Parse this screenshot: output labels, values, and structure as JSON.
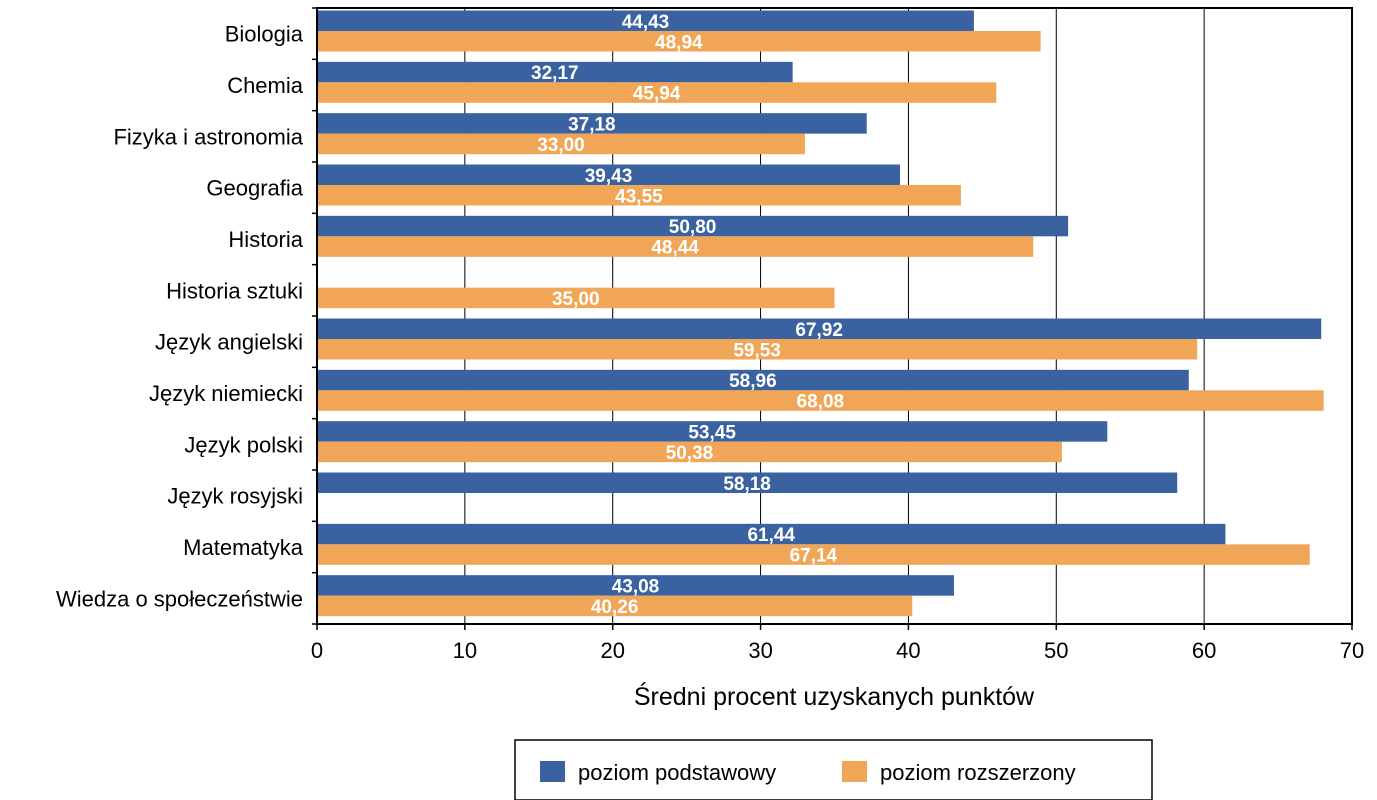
{
  "chart_data": {
    "type": "bar",
    "orientation": "horizontal",
    "categories": [
      "Biologia",
      "Chemia",
      "Fizyka i astronomia",
      "Geografia",
      "Historia",
      "Historia sztuki",
      "Język angielski",
      "Język niemiecki",
      "Język polski",
      "Język rosyjski",
      "Matematyka",
      "Wiedza o społeczeństwie"
    ],
    "series": [
      {
        "name": "poziom podstawowy",
        "color": "#3b62a0",
        "values": [
          44.43,
          32.17,
          37.18,
          39.43,
          50.8,
          null,
          67.92,
          58.96,
          53.45,
          58.18,
          61.44,
          43.08
        ],
        "labels": [
          "44,43",
          "32,17",
          "37,18",
          "39,43",
          "50,80",
          "",
          "67,92",
          "58,96",
          "53,45",
          "58,18",
          "61,44",
          "43,08"
        ]
      },
      {
        "name": "poziom rozszerzony",
        "color": "#f0a656",
        "values": [
          48.94,
          45.94,
          33.0,
          43.55,
          48.44,
          35.0,
          59.53,
          68.08,
          50.38,
          null,
          67.14,
          40.26
        ],
        "labels": [
          "48,94",
          "45,94",
          "33,00",
          "43,55",
          "48,44",
          "35,00",
          "59,53",
          "68,08",
          "50,38",
          "",
          "67,14",
          "40,26"
        ]
      }
    ],
    "xlabel": "Średni procent uzyskanych punktów",
    "ylabel": "",
    "title": "",
    "xlim": [
      0,
      70
    ],
    "xticks": [
      0,
      10,
      20,
      30,
      40,
      50,
      60,
      70
    ],
    "xtick_labels": [
      "0",
      "10",
      "20",
      "30",
      "40",
      "50",
      "60",
      "70"
    ],
    "grid": "vertical",
    "legend_position": "bottom-center"
  }
}
